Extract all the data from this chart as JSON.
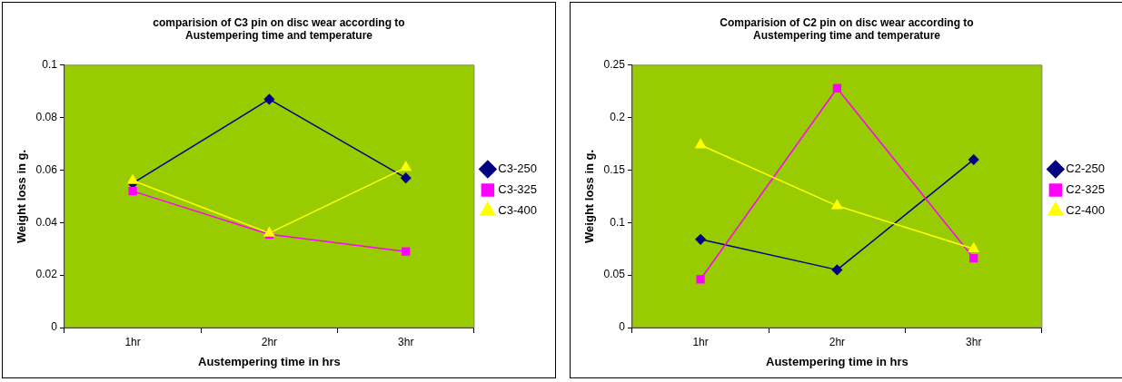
{
  "chart_data": [
    {
      "type": "line",
      "title": "comparision of C3 pin on disc wear according to Austempering time and temperature",
      "xlabel": "Austempering time in hrs",
      "ylabel": "Weight loss in g.",
      "categories": [
        "1hr",
        "2hr",
        "3hr"
      ],
      "ylim": [
        0,
        0.1
      ],
      "yticks": [
        0,
        0.02,
        0.04,
        0.06,
        0.08,
        0.1
      ],
      "legend": "right",
      "series": [
        {
          "name": "C3-250",
          "color": "#000080",
          "marker": "diamond",
          "values": [
            0.055,
            0.087,
            0.057
          ]
        },
        {
          "name": "C3-325",
          "color": "#ff00ff",
          "marker": "square",
          "values": [
            0.052,
            0.0355,
            0.029
          ]
        },
        {
          "name": "C3-400",
          "color": "#ffff00",
          "marker": "triangle",
          "values": [
            0.056,
            0.036,
            0.061
          ]
        }
      ]
    },
    {
      "type": "line",
      "title": "Comparision of C2 pin on disc wear according to Austempering time and temperature",
      "xlabel": "Austempering time in hrs",
      "ylabel": "Weight loss in g.",
      "categories": [
        "1hr",
        "2hr",
        "3hr"
      ],
      "ylim": [
        0,
        0.25
      ],
      "yticks": [
        0,
        0.05,
        0.1,
        0.15,
        0.2,
        0.25
      ],
      "legend": "right",
      "series": [
        {
          "name": "C2-250",
          "color": "#000080",
          "marker": "diamond",
          "values": [
            0.084,
            0.055,
            0.16
          ]
        },
        {
          "name": "C2-325",
          "color": "#ff00ff",
          "marker": "square",
          "values": [
            0.046,
            0.228,
            0.066
          ]
        },
        {
          "name": "C2-400",
          "color": "#ffff00",
          "marker": "triangle",
          "values": [
            0.174,
            0.116,
            0.075
          ]
        }
      ]
    }
  ]
}
